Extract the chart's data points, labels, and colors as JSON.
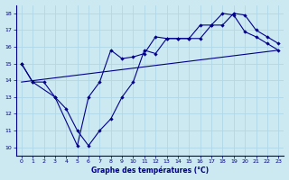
{
  "title": "Graphe des températures (°C)",
  "bg_color": "#cce8f0",
  "line_color": "#00008b",
  "grid_color": "#b0d8e8",
  "xlim": [
    -0.5,
    23.5
  ],
  "ylim": [
    9.5,
    18.5
  ],
  "xticks": [
    0,
    1,
    2,
    3,
    4,
    5,
    6,
    7,
    8,
    9,
    10,
    11,
    12,
    13,
    14,
    15,
    16,
    17,
    18,
    19,
    20,
    21,
    22,
    23
  ],
  "yticks": [
    10,
    11,
    12,
    13,
    14,
    15,
    16,
    17,
    18
  ],
  "series1_x": [
    0,
    1,
    3,
    4,
    5,
    6,
    7,
    8,
    9,
    10,
    11,
    12,
    13,
    14,
    15,
    16,
    17,
    18,
    19,
    20,
    21,
    22,
    23
  ],
  "series1_y": [
    15.0,
    13.9,
    13.0,
    12.3,
    11.0,
    10.1,
    11.0,
    11.7,
    13.0,
    13.9,
    15.8,
    15.6,
    16.5,
    16.5,
    16.5,
    16.5,
    17.3,
    17.3,
    18.0,
    17.9,
    17.0,
    16.6,
    16.2
  ],
  "series2_x": [
    0,
    1,
    2,
    3,
    5,
    6,
    7,
    8,
    9,
    10,
    11,
    12,
    13,
    14,
    15,
    16,
    17,
    18,
    19,
    20,
    21,
    22,
    23
  ],
  "series2_y": [
    15.0,
    13.9,
    13.9,
    13.0,
    10.1,
    13.0,
    13.9,
    15.8,
    15.3,
    15.4,
    15.6,
    16.6,
    16.5,
    16.5,
    16.5,
    17.3,
    17.3,
    18.0,
    17.9,
    16.9,
    16.6,
    16.2,
    15.8
  ],
  "trend_x": [
    0,
    23
  ],
  "trend_y": [
    13.9,
    15.8
  ]
}
